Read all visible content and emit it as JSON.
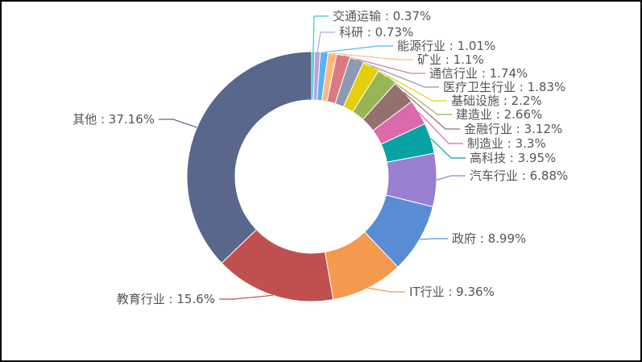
{
  "chart_data": {
    "type": "pie",
    "variant": "donut",
    "sort": "ascending-clockwise-from-top",
    "label_format": "{name} : {value}%",
    "slices": [
      {
        "name": "交通运输",
        "value": 0.37,
        "color": "#2ec7c9"
      },
      {
        "name": "科研",
        "value": 0.73,
        "color": "#b6a2de"
      },
      {
        "name": "能源行业",
        "value": 1.01,
        "color": "#5ab1ef"
      },
      {
        "name": "矿业",
        "value": 1.1,
        "color": "#ffb980"
      },
      {
        "name": "通信行业",
        "value": 1.74,
        "color": "#d87a80"
      },
      {
        "name": "医疗卫生行业",
        "value": 1.83,
        "color": "#8d98b3"
      },
      {
        "name": "基础设施",
        "value": 2.2,
        "color": "#e5cf0d"
      },
      {
        "name": "建造业",
        "value": 2.66,
        "color": "#97b552"
      },
      {
        "name": "金融行业",
        "value": 3.12,
        "color": "#95706d"
      },
      {
        "name": "制造业",
        "value": 3.3,
        "color": "#dc69aa"
      },
      {
        "name": "高科技",
        "value": 3.95,
        "color": "#07a2a4"
      },
      {
        "name": "汽车行业",
        "value": 6.88,
        "color": "#9a7fd1"
      },
      {
        "name": "政府",
        "value": 8.99,
        "color": "#588dd5"
      },
      {
        "name": "IT行业",
        "value": 9.36,
        "color": "#f5994e"
      },
      {
        "name": "教育行业",
        "value": 15.6,
        "color": "#c05050"
      },
      {
        "name": "其他",
        "value": 37.16,
        "color": "#59678c"
      }
    ]
  }
}
